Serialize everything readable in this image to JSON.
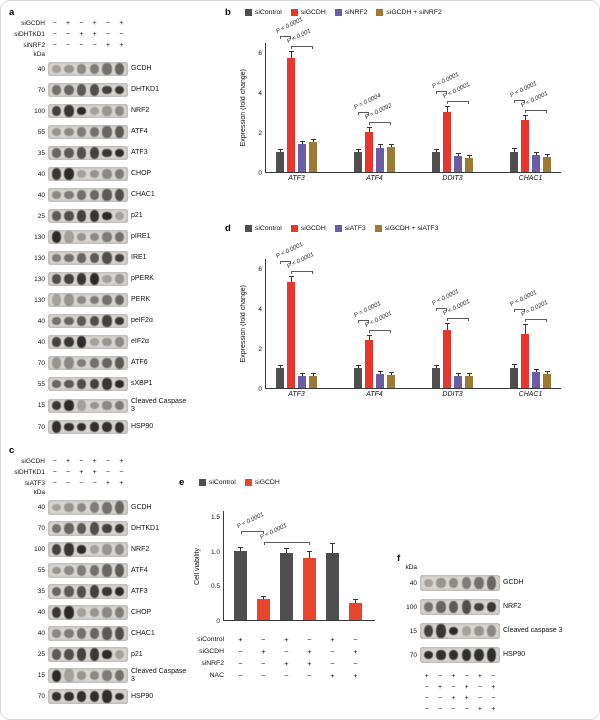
{
  "panels": {
    "a": "a",
    "b": "b",
    "c": "c",
    "d": "d",
    "e": "e",
    "f": "f"
  },
  "colors": {
    "siControl": "#4f4f4f",
    "siGCDH": "#e8362d",
    "siGCDH_orange": "#e8452c",
    "siNRF2": "#6b5ca5",
    "siATF3": "#6b5ca5",
    "combo_brown": "#9c7a33",
    "blot_strip_bg": "#d9d6d2",
    "blot_band": "#191919"
  },
  "blots": {
    "a": {
      "lanes": 6,
      "condition_rows": [
        {
          "label": "siGCDH",
          "symbols": [
            "−",
            "+",
            "−",
            "+",
            "−",
            "+"
          ]
        },
        {
          "label": "siDHTKD1",
          "symbols": [
            "−",
            "−",
            "+",
            "+",
            "−",
            "−"
          ]
        },
        {
          "label": "siNRF2",
          "symbols": [
            "−",
            "−",
            "−",
            "−",
            "+",
            "+"
          ]
        }
      ],
      "kda_header": "kDa",
      "rows": [
        {
          "kda": "40",
          "protein": "GCDH"
        },
        {
          "kda": "70",
          "protein": "DHTKD1"
        },
        {
          "kda": "100",
          "protein": "NRF2"
        },
        {
          "kda": "55",
          "protein": "ATF4"
        },
        {
          "kda": "35",
          "protein": "ATF3"
        },
        {
          "kda": "40",
          "protein": "CHOP"
        },
        {
          "kda": "40",
          "protein": "CHAC1"
        },
        {
          "kda": "25",
          "protein": "p21"
        },
        {
          "kda": "130",
          "protein": "pIRE1"
        },
        {
          "kda": "130",
          "protein": "IRE1"
        },
        {
          "kda": "130",
          "protein": "pPERK"
        },
        {
          "kda": "130",
          "protein": "PERK"
        },
        {
          "kda": "40",
          "protein": "peIF2α"
        },
        {
          "kda": "40",
          "protein": "eIF2α"
        },
        {
          "kda": "70",
          "protein": "ATF6"
        },
        {
          "kda": "55",
          "protein": "sXBP1"
        },
        {
          "kda": "15",
          "protein": "Cleaved Caspase 3"
        },
        {
          "kda": "70",
          "protein": "HSP90"
        }
      ]
    },
    "c": {
      "lanes": 6,
      "condition_rows": [
        {
          "label": "siGCDH",
          "symbols": [
            "−",
            "+",
            "−",
            "+",
            "−",
            "+"
          ]
        },
        {
          "label": "siDHTKD1",
          "symbols": [
            "−",
            "−",
            "+",
            "+",
            "−",
            "−"
          ]
        },
        {
          "label": "siATF3",
          "symbols": [
            "−",
            "−",
            "−",
            "−",
            "+",
            "+"
          ]
        }
      ],
      "kda_header": "kDa",
      "rows": [
        {
          "kda": "40",
          "protein": "GCDH"
        },
        {
          "kda": "70",
          "protein": "DHTKD1"
        },
        {
          "kda": "100",
          "protein": "NRF2"
        },
        {
          "kda": "55",
          "protein": "ATF4"
        },
        {
          "kda": "35",
          "protein": "ATF3"
        },
        {
          "kda": "40",
          "protein": "CHOP"
        },
        {
          "kda": "40",
          "protein": "CHAC1"
        },
        {
          "kda": "25",
          "protein": "p21"
        },
        {
          "kda": "15",
          "protein": "Cleaved Caspase 3"
        },
        {
          "kda": "70",
          "protein": "HSP90"
        }
      ]
    },
    "f": {
      "lanes": 6,
      "conditions_below": true,
      "kda_header": "kDa",
      "rows": [
        {
          "kda": "40",
          "protein": "GCDH"
        },
        {
          "kda": "100",
          "protein": "NRF2"
        },
        {
          "kda": "15",
          "protein": "Cleaved caspase 3"
        },
        {
          "kda": "70",
          "protein": "HSP90"
        }
      ],
      "condition_rows": [
        {
          "label": "",
          "symbols": [
            "+",
            "−",
            "+",
            "−",
            "+",
            "−"
          ]
        },
        {
          "label": "",
          "symbols": [
            "−",
            "+",
            "−",
            "+",
            "−",
            "+"
          ]
        },
        {
          "label": "",
          "symbols": [
            "−",
            "−",
            "+",
            "+",
            "−",
            "−"
          ]
        },
        {
          "label": "",
          "symbols": [
            "−",
            "−",
            "−",
            "−",
            "+",
            "+"
          ]
        }
      ]
    }
  },
  "chart_data": [
    {
      "id": "b",
      "type": "bar",
      "ylabel": "Expression (fold change)",
      "ylim": [
        0,
        6.5
      ],
      "yticks": [
        "0",
        "2",
        "4",
        "6"
      ],
      "grid": false,
      "legend_position": "top",
      "categories": [
        "ATF3",
        "ATF4",
        "DDIT3",
        "CHAC1"
      ],
      "series": [
        {
          "name": "siControl",
          "color": "#4f4f4f",
          "values": [
            1.0,
            1.0,
            1.0,
            1.0
          ],
          "errors": [
            0.08,
            0.1,
            0.12,
            0.15
          ]
        },
        {
          "name": "siGCDH",
          "color": "#e8362d",
          "values": [
            5.7,
            2.0,
            3.0,
            2.6
          ],
          "errors": [
            0.3,
            0.2,
            0.25,
            0.2
          ]
        },
        {
          "name": "siNRF2",
          "color": "#6b5ca5",
          "values": [
            1.4,
            1.2,
            0.8,
            0.85
          ],
          "errors": [
            0.1,
            0.15,
            0.1,
            0.1
          ]
        },
        {
          "name": "siGCDH + siNRF2",
          "color": "#9c7a33",
          "values": [
            1.5,
            1.25,
            0.7,
            0.75
          ],
          "errors": [
            0.1,
            0.12,
            0.1,
            0.1
          ]
        }
      ],
      "annotations": [
        {
          "group": 0,
          "from": 0,
          "to": 1,
          "level": 1,
          "label": "P < 0.0001"
        },
        {
          "group": 0,
          "from": 1,
          "to": 3,
          "level": 0,
          "label": "P < 0.001"
        },
        {
          "group": 1,
          "from": 0,
          "to": 1,
          "level": 1,
          "label": "P = 0.0004"
        },
        {
          "group": 1,
          "from": 1,
          "to": 3,
          "level": 0,
          "label": "P = 0.0092"
        },
        {
          "group": 2,
          "from": 0,
          "to": 1,
          "level": 1,
          "label": "P < 0.0001"
        },
        {
          "group": 2,
          "from": 1,
          "to": 3,
          "level": 0,
          "label": "P < 0.0001"
        },
        {
          "group": 3,
          "from": 0,
          "to": 1,
          "level": 1,
          "label": "P < 0.0001"
        },
        {
          "group": 3,
          "from": 1,
          "to": 3,
          "level": 0,
          "label": "P < 0.0001"
        }
      ]
    },
    {
      "id": "d",
      "type": "bar",
      "ylabel": "Expression (fold change)",
      "ylim": [
        0,
        6.5
      ],
      "yticks": [
        "0",
        "2",
        "4",
        "6"
      ],
      "grid": false,
      "legend_position": "top",
      "categories": [
        "ATF3",
        "ATF4",
        "DDIT3",
        "CHAC1"
      ],
      "series": [
        {
          "name": "siControl",
          "color": "#4f4f4f",
          "values": [
            1.0,
            1.0,
            1.0,
            1.0
          ],
          "errors": [
            0.08,
            0.1,
            0.12,
            0.15
          ]
        },
        {
          "name": "siGCDH",
          "color": "#e8362d",
          "values": [
            5.3,
            2.4,
            2.9,
            2.7
          ],
          "errors": [
            0.25,
            0.2,
            0.3,
            0.45
          ]
        },
        {
          "name": "siATF3",
          "color": "#6b5ca5",
          "values": [
            0.6,
            0.7,
            0.6,
            0.8
          ],
          "errors": [
            0.08,
            0.1,
            0.08,
            0.1
          ]
        },
        {
          "name": "siGCDH + siATF3",
          "color": "#9c7a33",
          "values": [
            0.6,
            0.65,
            0.6,
            0.7
          ],
          "errors": [
            0.08,
            0.1,
            0.08,
            0.1
          ]
        }
      ],
      "annotations": [
        {
          "group": 0,
          "from": 0,
          "to": 1,
          "level": 1,
          "label": "P < 0.0001"
        },
        {
          "group": 0,
          "from": 1,
          "to": 3,
          "level": 0,
          "label": "P < 0.0001"
        },
        {
          "group": 1,
          "from": 0,
          "to": 1,
          "level": 1,
          "label": "P = 0.0001"
        },
        {
          "group": 1,
          "from": 1,
          "to": 3,
          "level": 0,
          "label": "P < 0.0001"
        },
        {
          "group": 2,
          "from": 0,
          "to": 1,
          "level": 1,
          "label": "P < 0.0001"
        },
        {
          "group": 2,
          "from": 1,
          "to": 3,
          "level": 0,
          "label": "P < 0.0001"
        },
        {
          "group": 3,
          "from": 0,
          "to": 1,
          "level": 1,
          "label": "P < 0.0001"
        },
        {
          "group": 3,
          "from": 1,
          "to": 3,
          "level": 0,
          "label": "P = 0.0201"
        }
      ]
    },
    {
      "id": "e",
      "type": "bar",
      "ylabel": "Cell viability",
      "ylim": [
        0,
        1.6
      ],
      "yticks": [
        "0",
        "0.5",
        "1.0",
        "1.5"
      ],
      "grid": false,
      "legend_position": "top",
      "legend": [
        {
          "name": "siControl",
          "color": "#4f4f4f"
        },
        {
          "name": "siGCDH",
          "color": "#e8452c"
        }
      ],
      "bars": [
        {
          "name": "siControl",
          "color": "#4f4f4f",
          "value": 1.0,
          "error": 0.05
        },
        {
          "name": "siGCDH",
          "color": "#e8452c",
          "value": 0.3,
          "error": 0.04
        },
        {
          "name": "siControl + siNRF2",
          "color": "#4f4f4f",
          "value": 0.97,
          "error": 0.06
        },
        {
          "name": "siGCDH + siNRF2",
          "color": "#e8452c",
          "value": 0.9,
          "error": 0.09
        },
        {
          "name": "siControl + NAC",
          "color": "#4f4f4f",
          "value": 0.98,
          "error": 0.12
        },
        {
          "name": "siGCDH + NAC",
          "color": "#e8452c",
          "value": 0.25,
          "error": 0.04
        }
      ],
      "annotations": [
        {
          "from": 0,
          "to": 1,
          "level": 1,
          "label": "P < 0.0001"
        },
        {
          "from": 1,
          "to": 3,
          "level": 0,
          "label": "P < 0.0001"
        }
      ],
      "matrix": [
        {
          "label": "siControl",
          "symbols": [
            "+",
            "−",
            "+",
            "−",
            "+",
            "−"
          ]
        },
        {
          "label": "siGCDH",
          "symbols": [
            "−",
            "+",
            "−",
            "+",
            "−",
            "+"
          ]
        },
        {
          "label": "siNRF2",
          "symbols": [
            "−",
            "−",
            "+",
            "+",
            "−",
            "−"
          ]
        },
        {
          "label": "NAC",
          "symbols": [
            "−",
            "−",
            "−",
            "−",
            "+",
            "+"
          ]
        }
      ]
    }
  ]
}
